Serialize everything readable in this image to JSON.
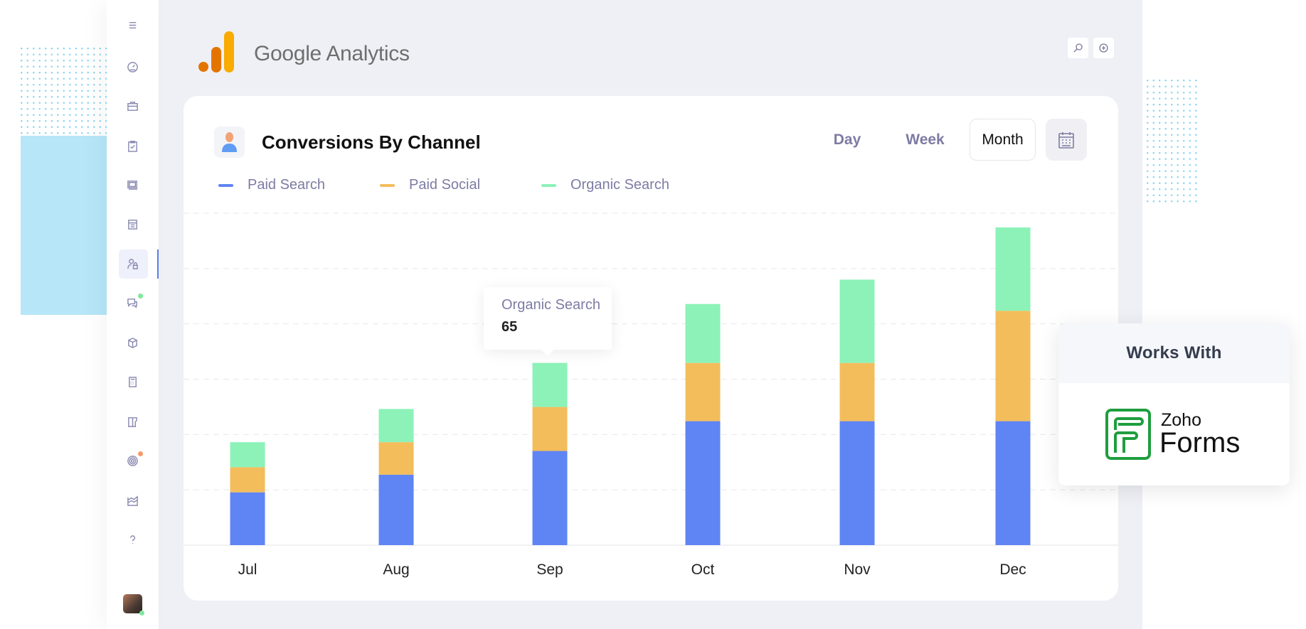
{
  "app": {
    "title": "Google Analytics"
  },
  "sidebar": {
    "items": [
      {
        "icon": "menu-icon"
      },
      {
        "icon": "dashboard-gauge-icon"
      },
      {
        "icon": "briefcase-icon"
      },
      {
        "icon": "clipboard-check-icon"
      },
      {
        "icon": "media-icon"
      },
      {
        "icon": "calendar-icon"
      },
      {
        "icon": "user-lock-icon",
        "active": true
      },
      {
        "icon": "chat-icon",
        "badge": "#7ee89c"
      },
      {
        "icon": "cube-icon"
      },
      {
        "icon": "calculator-icon"
      },
      {
        "icon": "map-icon"
      },
      {
        "icon": "radar-icon",
        "badge": "#f59a6c"
      },
      {
        "icon": "chart-area-icon"
      },
      {
        "icon": "help-icon"
      }
    ]
  },
  "toolbar": {
    "search_icon": "search-icon",
    "add_icon": "plus-circle-icon"
  },
  "card": {
    "title": "Conversions By Channel",
    "periods": [
      "Day",
      "Week",
      "Month"
    ],
    "selected_period": "Month",
    "calendar_icon": "calendar-icon"
  },
  "tooltip": {
    "series": "Organic Search",
    "value": "65"
  },
  "works_with": {
    "heading": "Works With",
    "brand_line1": "Zoho",
    "brand_line2": "Forms",
    "brand_color": "#1e9e3e"
  },
  "chart_data": {
    "type": "bar",
    "stacked": true,
    "categories": [
      "Jul",
      "Aug",
      "Sep",
      "Oct",
      "Nov",
      "Dec"
    ],
    "series": [
      {
        "name": "Paid Search",
        "color": "#5f84f4",
        "values": [
          78,
          104,
          139,
          183,
          183,
          183
        ]
      },
      {
        "name": "Paid Social",
        "color": "#f3bd5c",
        "values": [
          37,
          48,
          65,
          86,
          86,
          163
        ]
      },
      {
        "name": "Organic Search",
        "color": "#8cf2b8",
        "values": [
          37,
          49,
          65,
          87,
          123,
          123
        ]
      }
    ],
    "ylim": [
      0,
      490
    ],
    "grid": true,
    "legend": "top-left"
  }
}
